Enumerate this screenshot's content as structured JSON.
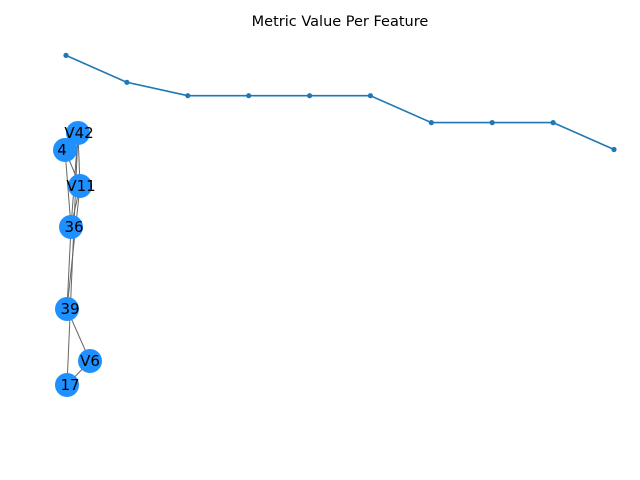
{
  "chart_data": {
    "type": "line",
    "title": "Metric Value Per Feature",
    "xlabel": "",
    "ylabel": "",
    "axes_visible": false,
    "grid": false,
    "x": [
      0,
      1,
      2,
      3,
      4,
      5,
      6,
      7,
      8,
      9
    ],
    "ylim": [
      0,
      10
    ],
    "series": [
      {
        "color": "#1f77b4",
        "marker": "circle",
        "values": [
          9.5,
          8.9,
          8.6,
          8.6,
          8.6,
          8.6,
          8.0,
          8.0,
          8.0,
          7.4
        ]
      }
    ],
    "network": {
      "node_color": "#1e90ff",
      "edge_color": "#666666",
      "nodes": [
        {
          "id": "V42",
          "label": "V42"
        },
        {
          "id": "V4",
          "label": "4"
        },
        {
          "id": "V11",
          "label": "V11"
        },
        {
          "id": "V36",
          "label": "36"
        },
        {
          "id": "V39",
          "label": "39"
        },
        {
          "id": "V6",
          "label": "V6"
        },
        {
          "id": "V17",
          "label": "17"
        }
      ],
      "edges": [
        [
          "V42",
          "V11"
        ],
        [
          "V42",
          "V36"
        ],
        [
          "V42",
          "V4"
        ],
        [
          "V4",
          "V11"
        ],
        [
          "V4",
          "V36"
        ],
        [
          "V11",
          "V36"
        ],
        [
          "V11",
          "V39"
        ],
        [
          "V36",
          "V39"
        ],
        [
          "V39",
          "V6"
        ],
        [
          "V17",
          "V6"
        ],
        [
          "V17",
          "V42"
        ]
      ]
    }
  }
}
